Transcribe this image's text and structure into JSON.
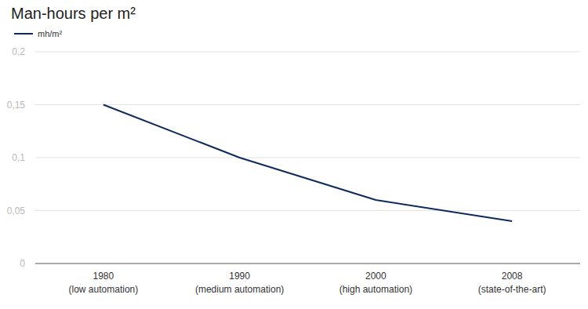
{
  "chart_data": {
    "type": "line",
    "title": "Man-hours per m²",
    "categories": [
      "1980\n(low automation)",
      "1990\n(medium automation)",
      "2000\n(high automation)",
      "2008\n(state-of-the-art)"
    ],
    "series": [
      {
        "name": "mh/m²",
        "color": "#0d2a5c",
        "values": [
          0.15,
          0.1,
          0.06,
          0.04
        ]
      }
    ],
    "ylim": [
      0,
      0.2
    ],
    "yticks": [
      0,
      {
        "value": 0.05,
        "label": "0,05"
      },
      {
        "value": 0.1,
        "label": "0,1"
      },
      {
        "value": 0.15,
        "label": "0,15"
      },
      {
        "value": 0.2,
        "label": "0,2"
      }
    ],
    "grid": true,
    "legend": "top-left"
  }
}
